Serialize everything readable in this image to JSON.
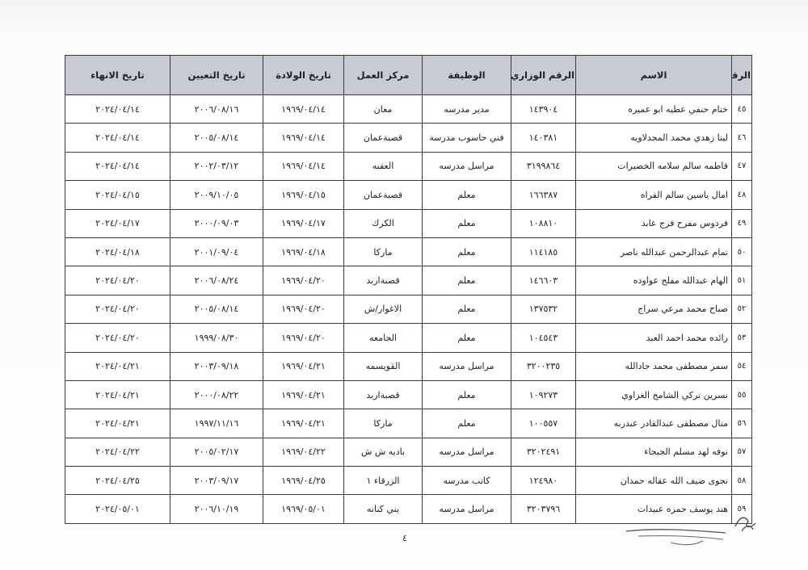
{
  "table": {
    "headers": [
      "الرقم",
      "الاسم",
      "الرقم الوزاري",
      "الوظيفة",
      "مركز العمل",
      "تاريخ الولادة",
      "تاريخ التعيين",
      "تاريخ الانهاء"
    ],
    "rows": [
      [
        "٤٥",
        "ختام حنفي عطيه ابو عميره",
        "١٤٣٩٠٤",
        "مدير مدرسه",
        "معان",
        "١٩٦٩/٠٤/١٤",
        "٢٠٠٦/٠٨/١٦",
        "٢٠٢٤/٠٤/١٤"
      ],
      [
        "٤٦",
        "لينا زهدي محمد المجدلاويه",
        "١٤٠٣٨١",
        "فني حاسوب مدرسة",
        "قصبةعمان",
        "١٩٦٩/٠٤/١٤",
        "٢٠٠٥/٠٨/١٤",
        "٢٠٢٤/٠٤/١٤"
      ],
      [
        "٤٧",
        "فاطمه سالم سلامه الخضيرات",
        "٣١٩٩٨٦٤",
        "مراسل مدرسه",
        "العقبه",
        "١٩٦٩/٠٤/١٤",
        "٢٠٠٢/٠٣/١٢",
        "٢٠٢٤/٠٤/١٤"
      ],
      [
        "٤٨",
        "امال ياسين سالم القراه",
        "١٦٦٣٨٧",
        "معلم",
        "قصبةعمان",
        "١٩٦٩/٠٤/١٥",
        "٢٠٠٩/١٠/٠٥",
        "٢٠٢٤/٠٤/١٥"
      ],
      [
        "٤٩",
        "فردوس مفرح فرج عابد",
        "١٠٨٨١٠",
        "معلم",
        "الكرك",
        "١٩٦٩/٠٤/١٧",
        "٢٠٠٠/٠٩/٠٣",
        "٢٠٢٤/٠٤/١٧"
      ],
      [
        "٥٠",
        "تمام عبدالرحمن عبدالله ناصر",
        "١١٤١٨٥",
        "معلم",
        "ماركا",
        "١٩٦٩/٠٤/١٨",
        "٢٠٠١/٠٩/٠٤",
        "٢٠٢٤/٠٤/١٨"
      ],
      [
        "٥١",
        "الهام عبدالله مفلح عواوده",
        "١٤٦٦٠٣",
        "معلم",
        "قصبةاربد",
        "١٩٦٩/٠٤/٢٠",
        "٢٠٠٦/٠٨/٢٤",
        "٢٠٢٤/٠٤/٢٠"
      ],
      [
        "٥٢",
        "صباح محمد مرعي سراج",
        "١٣٧٥٣٢",
        "معلم",
        "الاغوار/ش",
        "١٩٦٩/٠٤/٢٠",
        "٢٠٠٥/٠٨/١٤",
        "٢٠٢٤/٠٤/٢٠"
      ],
      [
        "٥٣",
        "رائده محمد احمد العبد",
        "١٠٤٥٤٣",
        "معلم",
        "الجامعه",
        "١٩٦٩/٠٤/٢٠",
        "١٩٩٩/٠٨/٣٠",
        "٢٠٢٤/٠٤/٢٠"
      ],
      [
        "٥٤",
        "سمر مصطفى محمد جادالله",
        "٣٢٠٠٢٣٥",
        "مراسل مدرسه",
        "القويسمه",
        "١٩٦٩/٠٤/٢١",
        "٢٠٠٣/٠٩/١٨",
        "٢٠٢٤/٠٤/٢١"
      ],
      [
        "٥٥",
        "نسرين تركي الشامخ الغزاوي",
        "١٠٩٢٧٣",
        "معلم",
        "قصبةاربد",
        "١٩٦٩/٠٤/٢١",
        "٢٠٠٠/٠٨/٢٢",
        "٢٠٢٤/٠٤/٢١"
      ],
      [
        "٥٦",
        "منال مصطفى عبدالقادر عبدربه",
        "١٠٠٥٥٧",
        "معلم",
        "ماركا",
        "١٩٦٩/٠٤/٢١",
        "١٩٩٧/١١/١٦",
        "٢٠٢٤/٠٤/٢١"
      ],
      [
        "٥٧",
        "نوفه لهد مسلم الجبجاء",
        "٣٢٠٢٤٩١",
        "مراسل مدرسه",
        "باديه ش ش",
        "١٩٦٩/٠٤/٢٢",
        "٢٠٠٥/٠٢/١٧",
        "٢٠٢٤/٠٤/٢٢"
      ],
      [
        "٥٨",
        "نجوى ضيف الله عقاله حمدان",
        "١٢٤٩٨٠",
        "كاتب مدرسه",
        "الزرقاء ١",
        "١٩٦٩/٠٤/٢٥",
        "٢٠٠٣/٠٩/١٧",
        "٢٠٢٤/٠٤/٢٥"
      ],
      [
        "٥٩",
        "هند يوسف حمزه عبيدات",
        "٣٢٠٣٧٩٦",
        "مراسل مدرسه",
        "بني كنانه",
        "١٩٦٩/٠٥/٠١",
        "٢٠٠٦/١٠/١٩",
        "٢٠٢٤/٠٥/٠١"
      ]
    ]
  },
  "footer": {
    "page_number": "٤"
  },
  "colors": {
    "header_bg": "#c9cbd4",
    "border": "#3a3a3a"
  }
}
